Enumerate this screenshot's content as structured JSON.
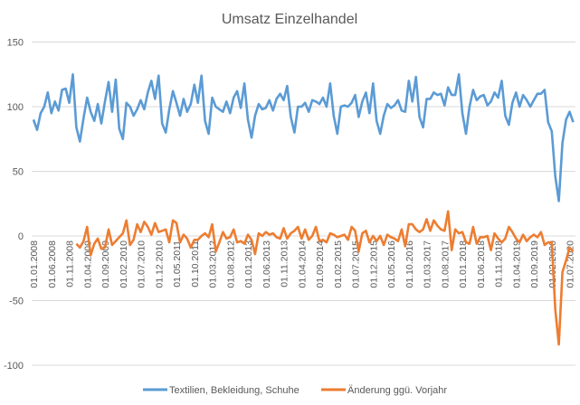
{
  "chart_data": {
    "type": "line",
    "title": "Umsatz Einzelhandel",
    "xlabel": "",
    "ylabel": "",
    "ylim": [
      -100,
      150
    ],
    "yticks": [
      -100,
      -50,
      0,
      50,
      100,
      150
    ],
    "grid": "horizontal",
    "legend_position": "bottom",
    "x_tick_labels": [
      "01.01.2008",
      "01.06.2008",
      "01.11.2008",
      "01.04.2009",
      "01.09.2009",
      "01.02.2010",
      "01.07.2010",
      "01.12.2010",
      "01.05.2011",
      "01.10.2011",
      "01.03.2012",
      "01.08.2012",
      "01.01.2013",
      "01.06.2013",
      "01.11.2013",
      "01.04.2014",
      "01.09.2014",
      "01.02.2015",
      "01.07.2015",
      "01.12.2015",
      "01.05.2016",
      "01.10.2016",
      "01.03.2017",
      "01.08.2017",
      "01.01.2018",
      "01.06.2018",
      "01.11.2018",
      "01.04.2019",
      "01.09.2019",
      "01.02.2020",
      "01.07.2020"
    ],
    "x": [
      "01.01.2008",
      "01.02.2008",
      "01.03.2008",
      "01.04.2008",
      "01.05.2008",
      "01.06.2008",
      "01.07.2008",
      "01.08.2008",
      "01.09.2008",
      "01.10.2008",
      "01.11.2008",
      "01.12.2008",
      "01.01.2009",
      "01.02.2009",
      "01.03.2009",
      "01.04.2009",
      "01.05.2009",
      "01.06.2009",
      "01.07.2009",
      "01.08.2009",
      "01.09.2009",
      "01.10.2009",
      "01.11.2009",
      "01.12.2009",
      "01.01.2010",
      "01.02.2010",
      "01.03.2010",
      "01.04.2010",
      "01.05.2010",
      "01.06.2010",
      "01.07.2010",
      "01.08.2010",
      "01.09.2010",
      "01.10.2010",
      "01.11.2010",
      "01.12.2010",
      "01.01.2011",
      "01.02.2011",
      "01.03.2011",
      "01.04.2011",
      "01.05.2011",
      "01.06.2011",
      "01.07.2011",
      "01.08.2011",
      "01.09.2011",
      "01.10.2011",
      "01.11.2011",
      "01.12.2011",
      "01.01.2012",
      "01.02.2012",
      "01.03.2012",
      "01.04.2012",
      "01.05.2012",
      "01.06.2012",
      "01.07.2012",
      "01.08.2012",
      "01.09.2012",
      "01.10.2012",
      "01.11.2012",
      "01.12.2012",
      "01.01.2013",
      "01.02.2013",
      "01.03.2013",
      "01.04.2013",
      "01.05.2013",
      "01.06.2013",
      "01.07.2013",
      "01.08.2013",
      "01.09.2013",
      "01.10.2013",
      "01.11.2013",
      "01.12.2013",
      "01.01.2014",
      "01.02.2014",
      "01.03.2014",
      "01.04.2014",
      "01.05.2014",
      "01.06.2014",
      "01.07.2014",
      "01.08.2014",
      "01.09.2014",
      "01.10.2014",
      "01.11.2014",
      "01.12.2014",
      "01.01.2015",
      "01.02.2015",
      "01.03.2015",
      "01.04.2015",
      "01.05.2015",
      "01.06.2015",
      "01.07.2015",
      "01.08.2015",
      "01.09.2015",
      "01.10.2015",
      "01.11.2015",
      "01.12.2015",
      "01.01.2016",
      "01.02.2016",
      "01.03.2016",
      "01.04.2016",
      "01.05.2016",
      "01.06.2016",
      "01.07.2016",
      "01.08.2016",
      "01.09.2016",
      "01.10.2016",
      "01.11.2016",
      "01.12.2016",
      "01.01.2017",
      "01.02.2017",
      "01.03.2017",
      "01.04.2017",
      "01.05.2017",
      "01.06.2017",
      "01.07.2017",
      "01.08.2017",
      "01.09.2017",
      "01.10.2017",
      "01.11.2017",
      "01.12.2017",
      "01.01.2018",
      "01.02.2018",
      "01.03.2018",
      "01.04.2018",
      "01.05.2018",
      "01.06.2018",
      "01.07.2018",
      "01.08.2018",
      "01.09.2018",
      "01.10.2018",
      "01.11.2018",
      "01.12.2018",
      "01.01.2019",
      "01.02.2019",
      "01.03.2019",
      "01.04.2019",
      "01.05.2019",
      "01.06.2019",
      "01.07.2019",
      "01.08.2019",
      "01.09.2019",
      "01.10.2019",
      "01.11.2019",
      "01.12.2019",
      "01.01.2020",
      "01.02.2020",
      "01.03.2020",
      "01.04.2020",
      "01.05.2020",
      "01.06.2020",
      "01.07.2020",
      "01.08.2020"
    ],
    "series": [
      {
        "name": "Textilien, Bekleidung, Schuhe",
        "color": "#5b9bd5",
        "values": [
          90,
          82,
          95,
          100,
          111,
          95,
          104,
          97,
          113,
          114,
          103,
          125,
          84,
          73,
          91,
          107,
          96,
          89,
          102,
          87,
          104,
          119,
          96,
          121,
          83,
          75,
          103,
          100,
          93,
          98,
          105,
          98,
          111,
          120,
          106,
          124,
          87,
          80,
          98,
          112,
          103,
          93,
          106,
          96,
          102,
          117,
          103,
          124,
          89,
          79,
          107,
          100,
          98,
          96,
          104,
          95,
          107,
          112,
          99,
          118,
          90,
          76,
          93,
          102,
          98,
          99,
          105,
          97,
          106,
          110,
          105,
          116,
          92,
          80,
          100,
          100,
          103,
          96,
          105,
          104,
          102,
          107,
          100,
          118,
          93,
          79,
          100,
          101,
          100,
          103,
          109,
          92,
          104,
          111,
          95,
          118,
          89,
          79,
          93,
          102,
          99,
          101,
          105,
          97,
          96,
          120,
          104,
          123,
          92,
          84,
          106,
          106,
          111,
          109,
          110,
          101,
          115,
          109,
          109,
          125,
          95,
          79,
          100,
          113,
          105,
          108,
          109,
          101,
          104,
          111,
          107,
          120,
          93,
          86,
          103,
          111,
          100,
          109,
          105,
          100,
          105,
          110,
          110,
          113,
          88,
          81,
          46,
          27,
          72,
          90,
          96,
          88
        ]
      },
      {
        "name": "Änderung ggü. Vorjahr",
        "color": "#ed7d31",
        "values": [
          null,
          null,
          null,
          null,
          null,
          null,
          null,
          null,
          null,
          null,
          null,
          null,
          -6,
          -9,
          -4,
          7,
          -15,
          -6,
          -2,
          -10,
          -9,
          5,
          -7,
          -4,
          -1,
          2,
          12,
          -7,
          -3,
          9,
          3,
          11,
          7,
          1,
          10,
          3,
          4,
          5,
          -5,
          12,
          10,
          -5,
          1,
          -2,
          -9,
          -3,
          -3,
          0,
          2,
          -1,
          9,
          -12,
          -5,
          3,
          -2,
          -1,
          5,
          -5,
          -4,
          -6,
          1,
          -3,
          -14,
          2,
          0,
          3,
          1,
          2,
          -1,
          -2,
          6,
          -2,
          2,
          4,
          7,
          -2,
          5,
          -3,
          0,
          7,
          -4,
          -3,
          -5,
          2,
          1,
          -1,
          0,
          1,
          -3,
          7,
          4,
          -12,
          2,
          4,
          -5,
          0,
          -4,
          0,
          -7,
          1,
          -1,
          -2,
          -4,
          5,
          -8,
          9,
          9,
          5,
          3,
          5,
          13,
          4,
          12,
          8,
          5,
          4,
          19,
          -11,
          5,
          2,
          3,
          -5,
          -6,
          7,
          -6,
          -1,
          -1,
          0,
          -11,
          2,
          -2,
          -5,
          -2,
          7,
          3,
          -2,
          -5,
          1,
          -4,
          -1,
          1,
          -1,
          3,
          -7,
          -5,
          -5,
          -57,
          -84,
          -28,
          -19,
          -9,
          -12
        ]
      }
    ]
  }
}
